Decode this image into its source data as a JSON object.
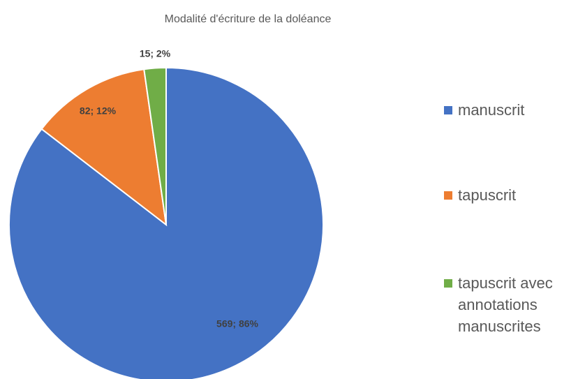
{
  "chart_data": {
    "type": "pie",
    "title": "Modalité d'écriture de la doléance",
    "categories": [
      "manuscrit",
      "tapuscrit",
      "tapuscrit avec annotations manuscrites"
    ],
    "values": [
      569,
      82,
      15
    ],
    "value_labels": [
      "569; 86%",
      "82; 12%",
      "15; 2%"
    ],
    "colors": [
      "#4472c4",
      "#ed7d31",
      "#70ad47"
    ],
    "legend": "right"
  }
}
